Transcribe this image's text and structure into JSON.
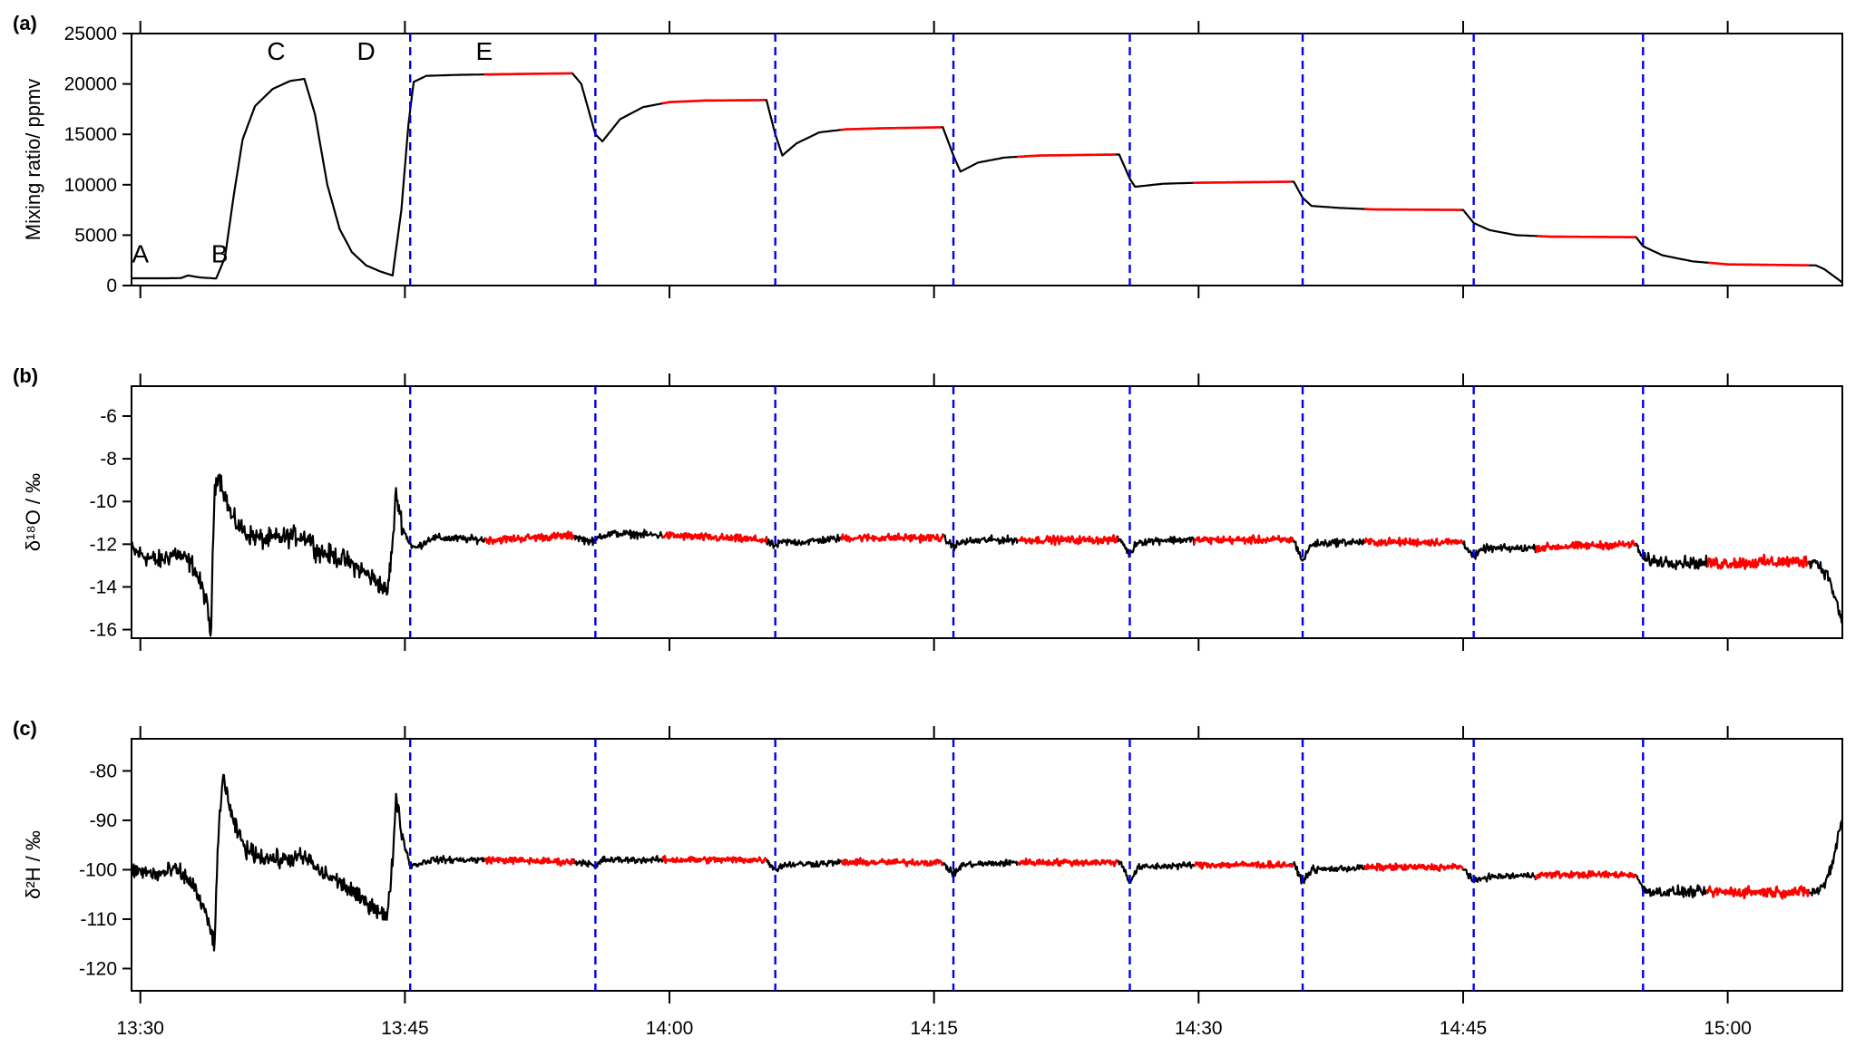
{
  "figure": {
    "x_tick_labels": [
      "13:30",
      "13:45",
      "14:00",
      "14:15",
      "14:30",
      "14:45",
      "15:00"
    ],
    "colors": {
      "trace": "#000000",
      "highlight": "#ff0000",
      "divider": "#0000ee",
      "axis": "#000000"
    }
  },
  "chart_data": [
    {
      "panel_label": "(a)",
      "type": "line",
      "ylabel": "Mixing ratio/ ppmv",
      "xlabel": "",
      "x_unit": "minutes since 13:30 (axis shows clock time)",
      "xlim": [
        -0.5,
        96.5
      ],
      "ylim": [
        0,
        25000
      ],
      "y_ticks": [
        0,
        5000,
        10000,
        15000,
        20000,
        25000
      ],
      "y_tick_labels": [
        "0",
        "5000",
        "10000",
        "15000",
        "20000",
        "25000"
      ],
      "grid": false,
      "annotations": [
        {
          "text": "A",
          "x": 0,
          "y": 3200
        },
        {
          "text": "B",
          "x": 4.5,
          "y": 3200
        },
        {
          "text": "C",
          "x": 7.7,
          "y": 23300
        },
        {
          "text": "D",
          "x": 12.8,
          "y": 23300
        },
        {
          "text": "E",
          "x": 19.5,
          "y": 23300
        }
      ],
      "dividers_x": [
        15.3,
        25.8,
        36.0,
        46.1,
        56.1,
        65.9,
        75.6,
        85.2
      ],
      "noise_scale": 0,
      "series": [
        {
          "points": [
            [
              -0.5,
              720
            ],
            [
              1.5,
              720
            ],
            [
              2.3,
              740
            ],
            [
              2.7,
              1000
            ],
            [
              3.4,
              800
            ],
            [
              4.3,
              700
            ],
            [
              4.8,
              2800
            ],
            [
              5.3,
              9000
            ],
            [
              5.8,
              14500
            ],
            [
              6.5,
              17800
            ],
            [
              7.5,
              19500
            ],
            [
              8.5,
              20300
            ],
            [
              9.3,
              20500
            ],
            [
              9.9,
              17000
            ],
            [
              10.6,
              10000
            ],
            [
              11.3,
              5600
            ],
            [
              12.0,
              3300
            ],
            [
              12.8,
              2000
            ],
            [
              13.6,
              1400
            ],
            [
              14.3,
              1000
            ],
            [
              14.8,
              7500
            ],
            [
              15.2,
              16000
            ],
            [
              15.5,
              20200
            ],
            [
              16.2,
              20800
            ],
            [
              18.0,
              20900
            ],
            [
              20.0,
              20950
            ],
            [
              22.0,
              21000
            ],
            [
              24.5,
              21050
            ],
            [
              25.0,
              20000
            ],
            [
              25.8,
              15000
            ],
            [
              26.2,
              14300
            ],
            [
              27.2,
              16500
            ],
            [
              28.5,
              17700
            ],
            [
              30.0,
              18200
            ],
            [
              32.0,
              18350
            ],
            [
              35.5,
              18400
            ],
            [
              36.0,
              15000
            ],
            [
              36.4,
              12900
            ],
            [
              37.2,
              14100
            ],
            [
              38.5,
              15200
            ],
            [
              40.0,
              15500
            ],
            [
              42.0,
              15600
            ],
            [
              45.5,
              15700
            ],
            [
              46.1,
              12900
            ],
            [
              46.5,
              11300
            ],
            [
              47.5,
              12200
            ],
            [
              49.0,
              12700
            ],
            [
              51.0,
              12900
            ],
            [
              55.5,
              13000
            ],
            [
              56.1,
              10600
            ],
            [
              56.4,
              9800
            ],
            [
              58.0,
              10100
            ],
            [
              60.0,
              10200
            ],
            [
              65.4,
              10300
            ],
            [
              65.9,
              8700
            ],
            [
              66.4,
              7900
            ],
            [
              68.0,
              7700
            ],
            [
              70.0,
              7550
            ],
            [
              75.0,
              7500
            ],
            [
              75.6,
              6200
            ],
            [
              76.5,
              5500
            ],
            [
              78.0,
              5000
            ],
            [
              80.0,
              4850
            ],
            [
              84.8,
              4800
            ],
            [
              85.2,
              3900
            ],
            [
              86.3,
              3000
            ],
            [
              88.0,
              2400
            ],
            [
              90.0,
              2100
            ],
            [
              95.0,
              2000
            ],
            [
              95.5,
              1600
            ],
            [
              96.5,
              300
            ]
          ]
        }
      ],
      "highlights_x": [
        [
          19.5,
          24.6
        ],
        [
          29.6,
          35.5
        ],
        [
          39.7,
          45.5
        ],
        [
          49.7,
          55.4
        ],
        [
          59.7,
          65.4
        ],
        [
          69.4,
          75.0
        ],
        [
          79.1,
          84.8
        ],
        [
          88.8,
          94.6
        ]
      ]
    },
    {
      "panel_label": "(b)",
      "type": "line",
      "ylabel": "δ¹⁸O / ‰",
      "xlabel": "",
      "xlim": [
        -0.5,
        96.5
      ],
      "ylim": [
        -16.4,
        -4.6
      ],
      "y_ticks": [
        -16,
        -14,
        -12,
        -10,
        -8,
        -6
      ],
      "y_tick_labels": [
        "-16",
        "-14",
        "-12",
        "-10",
        "-8",
        "-6"
      ],
      "grid": false,
      "dividers_x": [
        15.3,
        25.8,
        36.0,
        46.1,
        56.1,
        65.9,
        75.6,
        85.2
      ],
      "noise_scale": 0.12,
      "series": [
        {
          "points": [
            [
              -0.5,
              -12.3
            ],
            [
              1.0,
              -12.8
            ],
            [
              2.0,
              -12.4
            ],
            [
              3.0,
              -13.0
            ],
            [
              3.7,
              -14.5
            ],
            [
              4.0,
              -16.3
            ],
            [
              4.2,
              -9.5
            ],
            [
              4.4,
              -8.6
            ],
            [
              5.2,
              -10.8
            ],
            [
              6.0,
              -11.5
            ],
            [
              7.0,
              -11.8
            ],
            [
              8.0,
              -11.7
            ],
            [
              9.0,
              -11.6
            ],
            [
              9.6,
              -11.7
            ],
            [
              10.0,
              -12.3
            ],
            [
              11.5,
              -12.7
            ],
            [
              12.5,
              -13.2
            ],
            [
              13.5,
              -13.8
            ],
            [
              14.0,
              -14.3
            ],
            [
              14.3,
              -12.0
            ],
            [
              14.5,
              -9.6
            ],
            [
              14.9,
              -11.3
            ],
            [
              15.3,
              -12.0
            ],
            [
              15.6,
              -12.2
            ],
            [
              16.5,
              -11.7
            ],
            [
              20.0,
              -11.8
            ],
            [
              22.0,
              -11.7
            ],
            [
              24.5,
              -11.6
            ],
            [
              25.2,
              -11.8
            ],
            [
              25.8,
              -11.9
            ],
            [
              26.0,
              -11.6
            ],
            [
              27.0,
              -11.5
            ],
            [
              30.0,
              -11.6
            ],
            [
              35.3,
              -11.8
            ],
            [
              36.0,
              -12.1
            ],
            [
              36.4,
              -11.9
            ],
            [
              37.5,
              -11.9
            ],
            [
              40.0,
              -11.7
            ],
            [
              45.5,
              -11.7
            ],
            [
              46.1,
              -12.1
            ],
            [
              46.6,
              -11.9
            ],
            [
              48.0,
              -11.8
            ],
            [
              52.0,
              -11.8
            ],
            [
              55.6,
              -11.8
            ],
            [
              56.1,
              -12.5
            ],
            [
              56.5,
              -11.9
            ],
            [
              58.0,
              -11.8
            ],
            [
              60.0,
              -11.8
            ],
            [
              65.4,
              -11.8
            ],
            [
              65.9,
              -12.8
            ],
            [
              66.4,
              -12.0
            ],
            [
              68.0,
              -11.9
            ],
            [
              70.0,
              -11.9
            ],
            [
              75.0,
              -11.9
            ],
            [
              75.6,
              -12.6
            ],
            [
              76.2,
              -12.2
            ],
            [
              78.0,
              -12.2
            ],
            [
              81.0,
              -12.1
            ],
            [
              84.8,
              -12.0
            ],
            [
              85.2,
              -12.7
            ],
            [
              86.0,
              -12.8
            ],
            [
              89.0,
              -12.9
            ],
            [
              95.0,
              -12.8
            ],
            [
              95.7,
              -13.5
            ],
            [
              96.2,
              -14.8
            ],
            [
              96.5,
              -15.8
            ]
          ]
        }
      ],
      "highlights_x": [
        [
          19.5,
          24.6
        ],
        [
          29.6,
          35.5
        ],
        [
          39.7,
          45.5
        ],
        [
          49.7,
          55.4
        ],
        [
          59.7,
          65.4
        ],
        [
          69.4,
          75.0
        ],
        [
          79.1,
          84.8
        ],
        [
          88.8,
          94.6
        ]
      ]
    },
    {
      "panel_label": "(c)",
      "type": "line",
      "ylabel": "δ²H / ‰",
      "xlabel": "",
      "xlim": [
        -0.5,
        96.5
      ],
      "ylim": [
        -124.5,
        -73.5
      ],
      "y_ticks": [
        -120,
        -110,
        -100,
        -90,
        -80
      ],
      "y_tick_labels": [
        "-120",
        "-110",
        "-100",
        "-90",
        "-80"
      ],
      "grid": false,
      "dividers_x": [
        15.3,
        25.8,
        36.0,
        46.1,
        56.1,
        65.9,
        75.6,
        85.2
      ],
      "noise_scale": 0.45,
      "series": [
        {
          "points": [
            [
              -0.5,
              -100
            ],
            [
              1.0,
              -101
            ],
            [
              2.0,
              -100
            ],
            [
              3.0,
              -103
            ],
            [
              3.8,
              -110
            ],
            [
              4.2,
              -115
            ],
            [
              4.4,
              -95
            ],
            [
              4.7,
              -80.5
            ],
            [
              5.2,
              -90
            ],
            [
              6.0,
              -96
            ],
            [
              7.0,
              -97.5
            ],
            [
              8.0,
              -98
            ],
            [
              9.0,
              -97.5
            ],
            [
              9.6,
              -98
            ],
            [
              10.0,
              -100
            ],
            [
              11.5,
              -103
            ],
            [
              12.5,
              -106
            ],
            [
              13.5,
              -108
            ],
            [
              14.0,
              -110
            ],
            [
              14.3,
              -98
            ],
            [
              14.5,
              -85
            ],
            [
              14.9,
              -94
            ],
            [
              15.3,
              -99
            ],
            [
              15.6,
              -99
            ],
            [
              16.5,
              -98
            ],
            [
              20.0,
              -98
            ],
            [
              25.3,
              -98.5
            ],
            [
              25.8,
              -99.5
            ],
            [
              26.2,
              -98
            ],
            [
              30.0,
              -98
            ],
            [
              35.5,
              -98
            ],
            [
              36.0,
              -100
            ],
            [
              36.5,
              -99
            ],
            [
              40.0,
              -98.5
            ],
            [
              45.5,
              -98.5
            ],
            [
              46.1,
              -101
            ],
            [
              46.6,
              -99
            ],
            [
              50.0,
              -98.5
            ],
            [
              55.6,
              -98.5
            ],
            [
              56.1,
              -102.5
            ],
            [
              56.6,
              -99.5
            ],
            [
              60.0,
              -99
            ],
            [
              65.4,
              -99
            ],
            [
              65.9,
              -102.5
            ],
            [
              66.4,
              -100
            ],
            [
              70.0,
              -99.5
            ],
            [
              75.0,
              -99.5
            ],
            [
              75.6,
              -102.5
            ],
            [
              76.2,
              -101.5
            ],
            [
              80.0,
              -101
            ],
            [
              84.8,
              -101
            ],
            [
              85.2,
              -104
            ],
            [
              86.0,
              -104.5
            ],
            [
              89.0,
              -104.5
            ],
            [
              95.0,
              -104.5
            ],
            [
              95.5,
              -103
            ],
            [
              96.0,
              -98
            ],
            [
              96.3,
              -92
            ],
            [
              96.5,
              -90
            ]
          ]
        }
      ],
      "highlights_x": [
        [
          19.5,
          24.6
        ],
        [
          29.6,
          35.5
        ],
        [
          39.7,
          45.5
        ],
        [
          49.7,
          55.4
        ],
        [
          59.7,
          65.4
        ],
        [
          69.4,
          75.0
        ],
        [
          79.1,
          84.8
        ],
        [
          88.8,
          94.6
        ]
      ]
    }
  ]
}
